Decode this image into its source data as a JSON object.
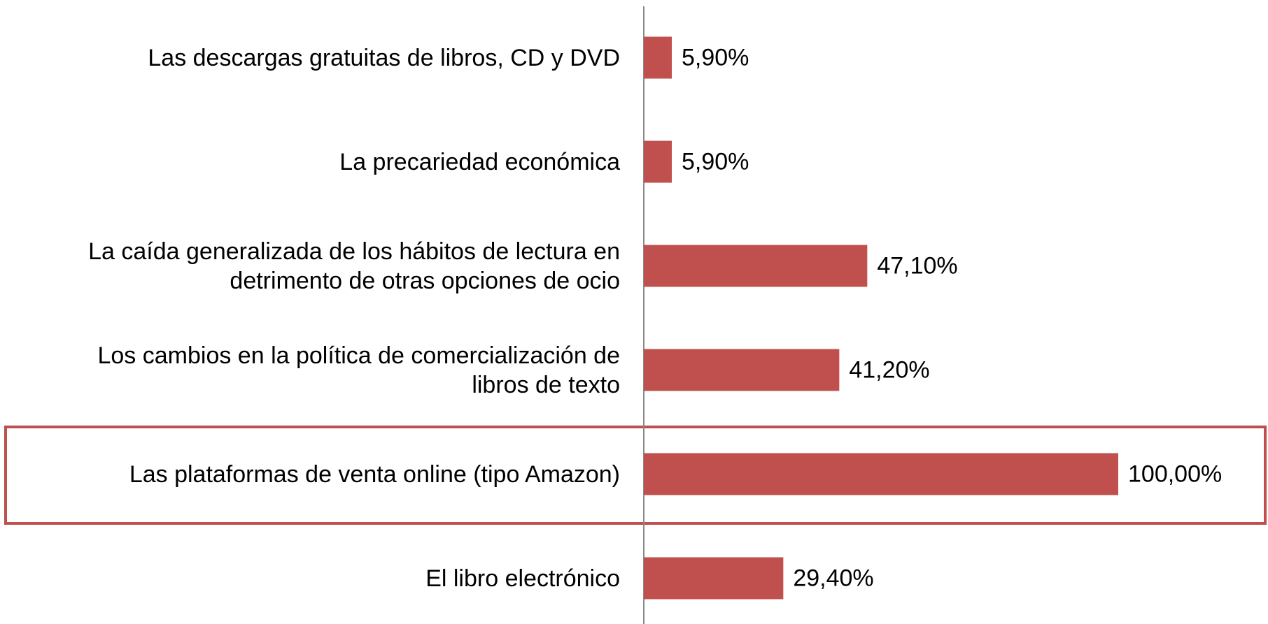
{
  "chart_data": {
    "type": "bar",
    "orientation": "horizontal",
    "categories": [
      "Las descargas gratuitas de libros, CD y DVD",
      "La precariedad económica",
      "La caída generalizada de los hábitos de lectura en\ndetrimento de otras opciones de ocio",
      "Los cambios en la política de comercialización de\nlibros de texto",
      "Las plataformas de venta online (tipo Amazon)",
      "El libro electrónico"
    ],
    "values": [
      5.9,
      5.9,
      47.1,
      41.2,
      100,
      29.4
    ],
    "value_labels": [
      "5,90%",
      "5,90%",
      "47,10%",
      "41,20%",
      "100,00%",
      "29,40%"
    ],
    "color": "#c0504d",
    "xlim": [
      0,
      100
    ]
  }
}
